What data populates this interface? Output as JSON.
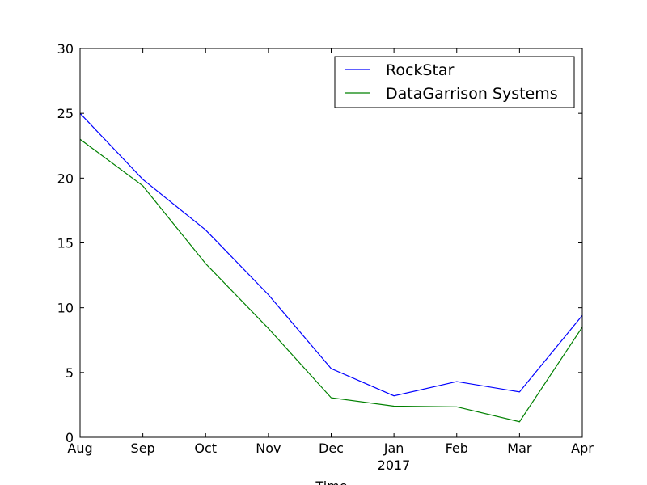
{
  "chart_data": {
    "type": "line",
    "title": "",
    "xlabel": "Time",
    "ylabel": "",
    "x": [
      "Aug",
      "Sep",
      "Oct",
      "Nov",
      "Dec",
      "Jan",
      "Feb",
      "Mar",
      "Apr"
    ],
    "x_secondary_label": "2017",
    "ylim": [
      0,
      30
    ],
    "yticks": [
      "0",
      "5",
      "10",
      "15",
      "20",
      "25",
      "30"
    ],
    "grid": false,
    "legend_position": "upper-right",
    "series": [
      {
        "name": "RockStar",
        "color": "#0000ff",
        "values": [
          25.0,
          19.9,
          16.0,
          11.0,
          5.3,
          3.2,
          4.3,
          3.5,
          9.4
        ]
      },
      {
        "name": "DataGarrison Systems",
        "color": "#008000",
        "values": [
          23.0,
          19.4,
          13.4,
          8.4,
          3.05,
          2.4,
          2.35,
          1.2,
          8.5
        ]
      }
    ]
  }
}
